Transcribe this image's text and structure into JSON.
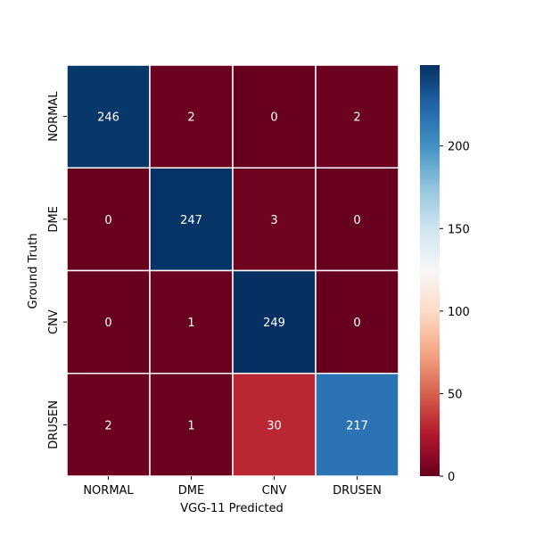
{
  "chart_data": {
    "type": "heatmap",
    "title": "",
    "xlabel": "VGG-11 Predicted",
    "ylabel": "Ground Truth",
    "x_categories": [
      "NORMAL",
      "DME",
      "CNV",
      "DRUSEN"
    ],
    "y_categories": [
      "NORMAL",
      "DME",
      "CNV",
      "DRUSEN"
    ],
    "values": [
      [
        246,
        2,
        0,
        2
      ],
      [
        0,
        247,
        3,
        0
      ],
      [
        0,
        1,
        249,
        0
      ],
      [
        2,
        1,
        30,
        217
      ]
    ],
    "colorbar": {
      "colormap": "RdBu",
      "range": [
        0,
        249
      ],
      "ticks": [
        0,
        50,
        100,
        150,
        200
      ]
    },
    "colors": {
      "low": "#67001f",
      "high": "#053061",
      "cell_border": "#ffffff"
    }
  }
}
